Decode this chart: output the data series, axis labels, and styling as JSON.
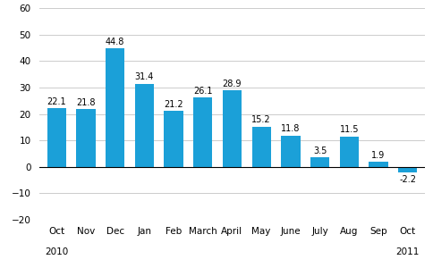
{
  "categories": [
    "Oct",
    "Nov",
    "Dec",
    "Jan",
    "Feb",
    "March",
    "April",
    "May",
    "June",
    "July",
    "Aug",
    "Sep",
    "Oct"
  ],
  "sublabels": [
    "2010",
    "",
    "",
    "",
    "",
    "",
    "",
    "",
    "",
    "",
    "",
    "",
    "2011"
  ],
  "values": [
    22.1,
    21.8,
    44.8,
    31.4,
    21.2,
    26.1,
    28.9,
    15.2,
    11.8,
    3.5,
    11.5,
    1.9,
    -2.2
  ],
  "bar_color": "#1ba0d8",
  "ylim": [
    -20,
    60
  ],
  "yticks": [
    -20,
    -10,
    0,
    10,
    20,
    30,
    40,
    50,
    60
  ],
  "label_fontsize": 7.5,
  "tick_fontsize": 7.5,
  "value_fontsize": 7.0,
  "bar_width": 0.65,
  "background_color": "#ffffff",
  "grid_color": "#cccccc"
}
